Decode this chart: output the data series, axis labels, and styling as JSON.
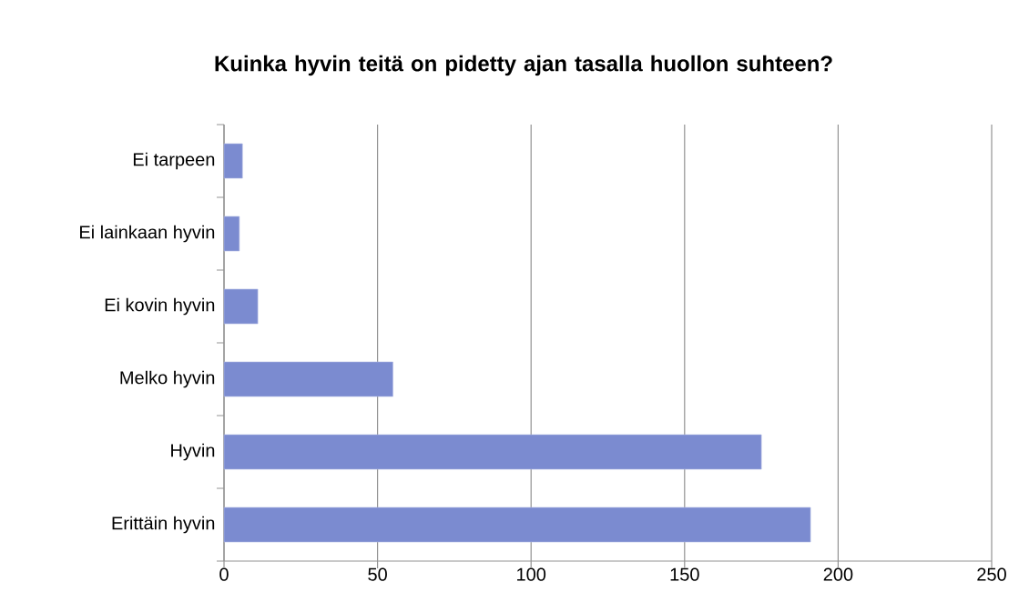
{
  "chart_data": {
    "type": "bar",
    "orientation": "horizontal",
    "title": "Kuinka hyvin teitä on pidetty ajan tasalla huollon suhteen?",
    "categories": [
      "Ei tarpeen",
      "Ei lainkaan hyvin",
      "Ei kovin hyvin",
      "Melko hyvin",
      "Hyvin",
      "Erittäin hyvin"
    ],
    "values": [
      6,
      5,
      11,
      55,
      175,
      191
    ],
    "color": "#7b8bd0",
    "xlim": [
      0,
      250
    ],
    "xticks": [
      0,
      50,
      100,
      150,
      200,
      250
    ],
    "grid": "x"
  }
}
